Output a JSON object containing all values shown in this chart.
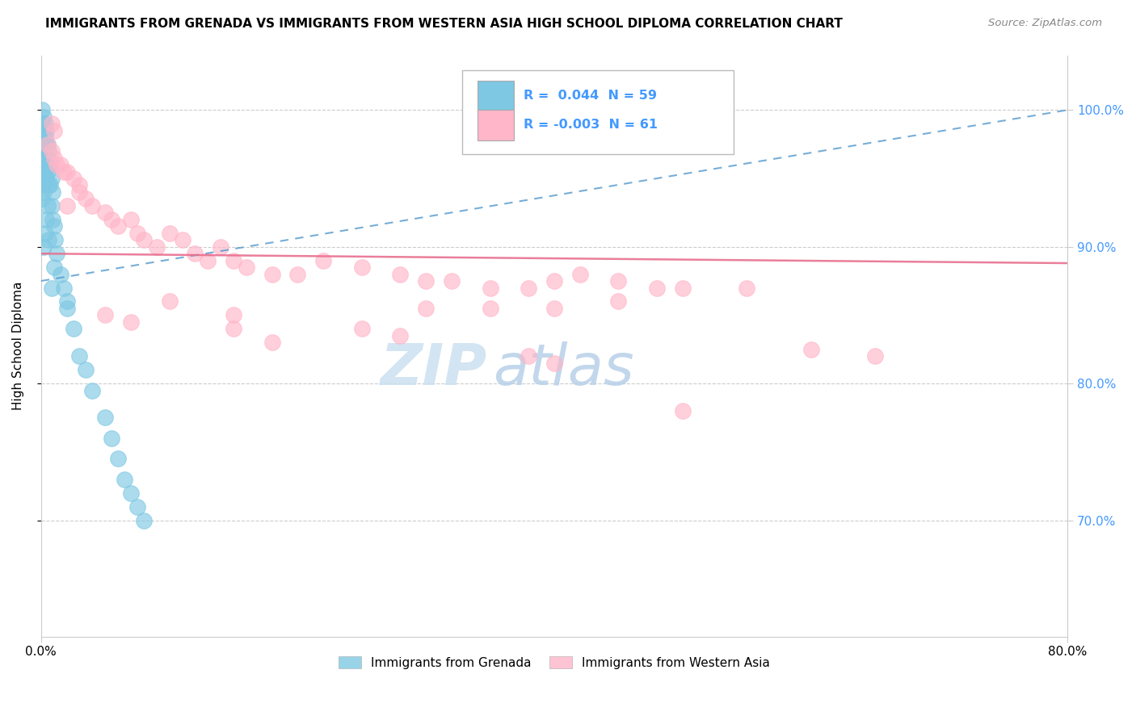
{
  "title": "IMMIGRANTS FROM GRENADA VS IMMIGRANTS FROM WESTERN ASIA HIGH SCHOOL DIPLOMA CORRELATION CHART",
  "source": "Source: ZipAtlas.com",
  "ylabel": "High School Diploma",
  "legend_grenada": "Immigrants from Grenada",
  "legend_western_asia": "Immigrants from Western Asia",
  "R_grenada": 0.044,
  "N_grenada": 59,
  "R_western_asia": -0.003,
  "N_western_asia": 61,
  "color_grenada": "#7ec8e3",
  "color_western_asia": "#ffb6c8",
  "trend_grenada_color": "#5599cc",
  "trend_western_asia_color": "#e87090",
  "background_color": "#ffffff",
  "xlim": [
    0.0,
    0.8
  ],
  "ylim": [
    0.615,
    1.04
  ],
  "yticks": [
    0.7,
    0.8,
    0.9,
    1.0
  ],
  "ytick_labels": [
    "70.0%",
    "80.0%",
    "90.0%",
    "100.0%"
  ],
  "grenada_x": [
    0.001,
    0.001,
    0.001,
    0.001,
    0.001,
    0.001,
    0.001,
    0.002,
    0.002,
    0.002,
    0.002,
    0.002,
    0.002,
    0.003,
    0.003,
    0.003,
    0.003,
    0.003,
    0.004,
    0.004,
    0.004,
    0.004,
    0.005,
    0.005,
    0.005,
    0.006,
    0.006,
    0.006,
    0.007,
    0.007,
    0.008,
    0.008,
    0.009,
    0.009,
    0.01,
    0.011,
    0.012,
    0.015,
    0.018,
    0.02,
    0.025,
    0.03,
    0.035,
    0.04,
    0.05,
    0.055,
    0.06,
    0.065,
    0.07,
    0.075,
    0.08,
    0.01,
    0.02,
    0.005,
    0.003,
    0.002,
    0.004,
    0.006,
    0.008
  ],
  "grenada_y": [
    1.0,
    0.99,
    0.98,
    0.97,
    0.96,
    0.945,
    0.935,
    0.995,
    0.985,
    0.975,
    0.965,
    0.955,
    0.94,
    0.99,
    0.98,
    0.97,
    0.96,
    0.95,
    0.985,
    0.975,
    0.965,
    0.95,
    0.975,
    0.965,
    0.955,
    0.97,
    0.96,
    0.945,
    0.96,
    0.945,
    0.95,
    0.93,
    0.94,
    0.92,
    0.915,
    0.905,
    0.895,
    0.88,
    0.87,
    0.855,
    0.84,
    0.82,
    0.81,
    0.795,
    0.775,
    0.76,
    0.745,
    0.73,
    0.72,
    0.71,
    0.7,
    0.885,
    0.86,
    0.93,
    0.91,
    0.9,
    0.92,
    0.905,
    0.87
  ],
  "western_asia_x": [
    0.005,
    0.008,
    0.01,
    0.012,
    0.015,
    0.018,
    0.02,
    0.025,
    0.03,
    0.035,
    0.04,
    0.05,
    0.055,
    0.06,
    0.07,
    0.075,
    0.08,
    0.09,
    0.1,
    0.11,
    0.12,
    0.13,
    0.14,
    0.15,
    0.16,
    0.18,
    0.2,
    0.22,
    0.25,
    0.28,
    0.3,
    0.32,
    0.35,
    0.38,
    0.4,
    0.42,
    0.45,
    0.48,
    0.5,
    0.55,
    0.4,
    0.45,
    0.3,
    0.35,
    0.1,
    0.15,
    0.02,
    0.03,
    0.6,
    0.65,
    0.38,
    0.4,
    0.25,
    0.28,
    0.15,
    0.18,
    0.05,
    0.07,
    0.008,
    0.01,
    0.5
  ],
  "western_asia_y": [
    0.975,
    0.97,
    0.965,
    0.96,
    0.96,
    0.955,
    0.955,
    0.95,
    0.945,
    0.935,
    0.93,
    0.925,
    0.92,
    0.915,
    0.92,
    0.91,
    0.905,
    0.9,
    0.91,
    0.905,
    0.895,
    0.89,
    0.9,
    0.89,
    0.885,
    0.88,
    0.88,
    0.89,
    0.885,
    0.88,
    0.875,
    0.875,
    0.87,
    0.87,
    0.875,
    0.88,
    0.875,
    0.87,
    0.87,
    0.87,
    0.855,
    0.86,
    0.855,
    0.855,
    0.86,
    0.85,
    0.93,
    0.94,
    0.825,
    0.82,
    0.82,
    0.815,
    0.84,
    0.835,
    0.84,
    0.83,
    0.85,
    0.845,
    0.99,
    0.985,
    0.78
  ],
  "watermark_zip": "ZIP",
  "watermark_atlas": "atlas",
  "watermark_color_zip": "#c8dff0",
  "watermark_color_atlas": "#b0c8e0"
}
